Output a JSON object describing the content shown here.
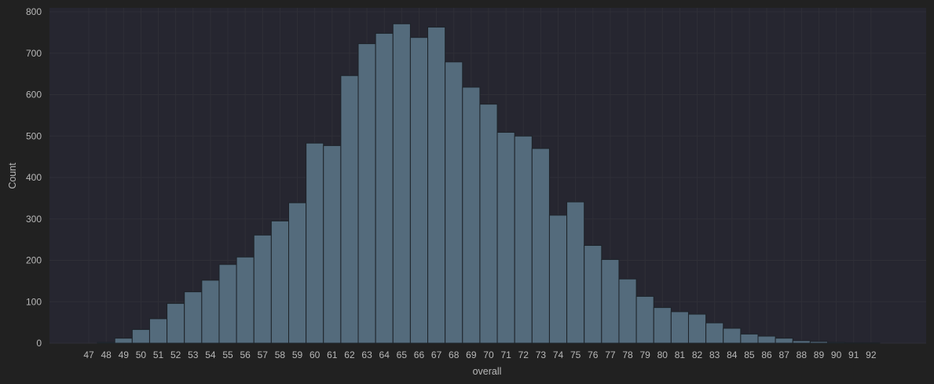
{
  "colors": {
    "page_background": "#212121",
    "plot_background": "#262630",
    "bar_fill": "#546B7C",
    "bar_stroke": "#1d2228",
    "grid": "#2f2f37",
    "text": "#b8b8b8"
  },
  "chart_data": {
    "type": "bar",
    "xlabel": "overall",
    "ylabel": "Count",
    "ylim": [
      0,
      800
    ],
    "yticks": [
      0,
      100,
      200,
      300,
      400,
      500,
      600,
      700,
      800
    ],
    "grid": true,
    "categories": [
      "47",
      "48",
      "49",
      "50",
      "51",
      "52",
      "53",
      "54",
      "55",
      "56",
      "57",
      "58",
      "59",
      "60",
      "61",
      "62",
      "63",
      "64",
      "65",
      "66",
      "67",
      "68",
      "69",
      "70",
      "71",
      "72",
      "73",
      "74",
      "75",
      "76",
      "77",
      "78",
      "79",
      "80",
      "81",
      "82",
      "83",
      "84",
      "85",
      "86",
      "87",
      "88",
      "89",
      "90",
      "91",
      "92"
    ],
    "values": [
      0,
      2,
      12,
      33,
      59,
      96,
      124,
      152,
      190,
      208,
      261,
      295,
      339,
      483,
      477,
      646,
      723,
      748,
      771,
      738,
      763,
      679,
      618,
      577,
      509,
      500,
      470,
      309,
      341,
      236,
      202,
      155,
      113,
      86,
      76,
      70,
      49,
      36,
      22,
      17,
      12,
      6,
      4,
      2,
      1,
      1
    ]
  }
}
